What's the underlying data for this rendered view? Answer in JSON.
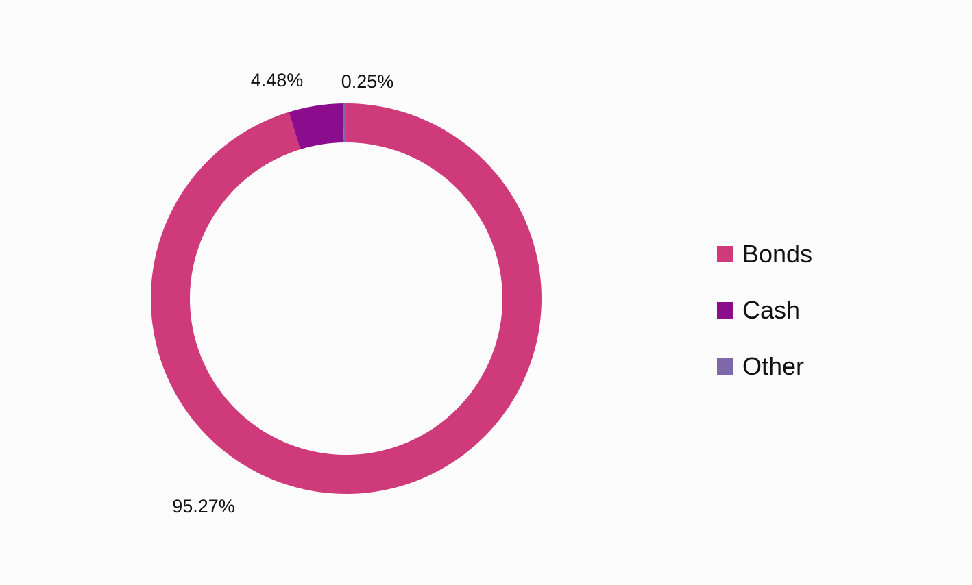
{
  "chart_data": {
    "type": "pie",
    "variant": "donut",
    "title": "",
    "categories": [
      "Bonds",
      "Cash",
      "Other"
    ],
    "values": [
      95.27,
      4.48,
      0.25
    ],
    "data_labels": [
      "95.27%",
      "4.48%",
      "0.25%"
    ],
    "colors": [
      "#cf3a7a",
      "#8b0c8c",
      "#7f68a8"
    ],
    "start_angle_deg": 0,
    "direction": "clockwise",
    "legend_placement": "right",
    "legend": [
      {
        "label": "Bonds",
        "color": "#cf3a7a"
      },
      {
        "label": "Cash",
        "color": "#8b0c8c"
      },
      {
        "label": "Other",
        "color": "#7f68a8"
      }
    ]
  }
}
